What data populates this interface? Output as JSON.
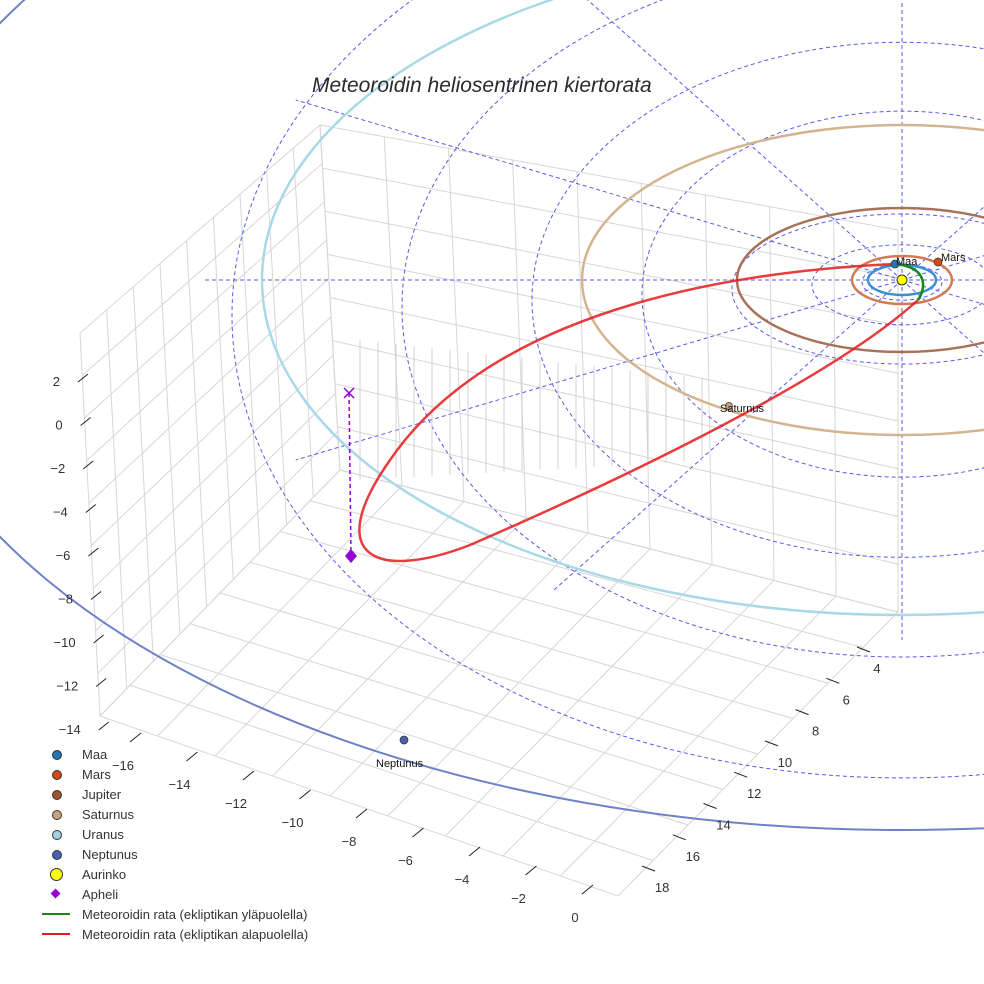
{
  "chart_data": {
    "type": "scatter",
    "subtype": "3d-orbit",
    "title": "Meteoroidin heliosentrinen kiertorata",
    "xlabel": "",
    "ylabel": "",
    "zlabel": "",
    "x_axis": {
      "ticks": [
        "−16",
        "−14",
        "−12",
        "−10",
        "−8",
        "−6",
        "−4",
        "−2",
        "0"
      ],
      "range": [
        -17,
        0.5
      ]
    },
    "y_axis": {
      "ticks": [
        "4",
        "6",
        "8",
        "10",
        "12",
        "14",
        "16",
        "18"
      ],
      "range": [
        3,
        19
      ]
    },
    "z_axis": {
      "ticks": [
        "2",
        "0",
        "−2",
        "−4",
        "−6",
        "−8",
        "−10",
        "−12",
        "−14"
      ],
      "range": [
        -14.5,
        3
      ]
    },
    "grid": true,
    "legend_position": "bottom-left",
    "planets": [
      {
        "name": "Maa",
        "color": "#1f77b4",
        "orbit_radius_au": 1.0,
        "label_shown": true
      },
      {
        "name": "Mars",
        "color": "#d2491a",
        "orbit_radius_au": 1.52,
        "label_shown": true
      },
      {
        "name": "Jupiter",
        "color": "#a0522d",
        "orbit_radius_au": 5.2,
        "label_shown": false
      },
      {
        "name": "Saturnus",
        "color": "#c8a27a",
        "orbit_radius_au": 9.58,
        "label_shown": true
      },
      {
        "name": "Uranus",
        "color": "#add8e6",
        "orbit_radius_au": 19.2,
        "label_shown": false
      },
      {
        "name": "Neptunus",
        "color": "#4b5fb0",
        "orbit_radius_au": 30.1,
        "label_shown": true
      }
    ],
    "sun": {
      "name": "Aurinko",
      "color": "#ffff00"
    },
    "aphelion": {
      "name": "Apheli",
      "color": "#9400d3",
      "marker": "diamond"
    },
    "series": [
      {
        "name": "Meteoroidin rata (ekliptikan yläpuolella)",
        "color": "#138a13",
        "type": "line"
      },
      {
        "name": "Meteoroidin rata (ekliptikan alapuolella)",
        "color": "#e41a1c",
        "type": "line"
      }
    ]
  },
  "legend": {
    "items": [
      {
        "label": "Maa",
        "kind": "dot",
        "color": "#1f77b4"
      },
      {
        "label": "Mars",
        "kind": "dot",
        "color": "#d2491a"
      },
      {
        "label": "Jupiter",
        "kind": "dot",
        "color": "#a0522d"
      },
      {
        "label": "Saturnus",
        "kind": "dot",
        "color": "#c8a27a"
      },
      {
        "label": "Uranus",
        "kind": "dot",
        "color": "#9fd3e3"
      },
      {
        "label": "Neptunus",
        "kind": "dot",
        "color": "#4b5fb0"
      },
      {
        "label": "Aurinko",
        "kind": "sun",
        "color": "#ffff00"
      },
      {
        "label": "Apheli",
        "kind": "diamond",
        "color": "#9400d3"
      },
      {
        "label": "Meteoroidin rata (ekliptikan yläpuolella)",
        "kind": "line",
        "color": "#138a13"
      },
      {
        "label": "Meteoroidin rata (ekliptikan alapuolella)",
        "kind": "line",
        "color": "#e41a1c"
      }
    ]
  },
  "labels": {
    "maa": "Maa",
    "mars": "Mars",
    "saturnus": "Saturnus",
    "neptunus": "Neptunus"
  }
}
